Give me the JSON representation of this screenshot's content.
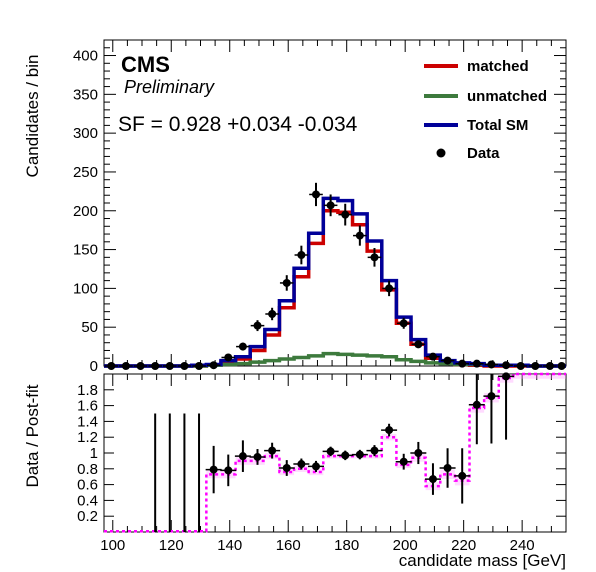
{
  "chart_data": [
    {
      "type": "histogram",
      "panel": "main",
      "header": {
        "experiment": "CMS",
        "status": "Preliminary",
        "scale_factor_text": "SF = 0.928  +0.034 -0.034"
      },
      "ylabel": "Candidates / bin",
      "ylim": [
        0,
        420
      ],
      "yticks": [
        0,
        50,
        100,
        150,
        200,
        250,
        300,
        350,
        400
      ],
      "xlim": [
        97,
        255
      ],
      "bin_width": 5,
      "bin_edges": [
        97,
        102,
        107,
        112,
        117,
        122,
        127,
        132,
        137,
        142,
        147,
        152,
        157,
        162,
        167,
        172,
        177,
        182,
        187,
        192,
        197,
        202,
        207,
        212,
        217,
        222,
        227,
        232,
        237,
        242,
        247,
        252,
        255
      ],
      "legend_position": "top-right",
      "legend": [
        {
          "label": "matched",
          "color": "#cc0000",
          "style": "line"
        },
        {
          "label": "unmatched",
          "color": "#3d7a3d",
          "style": "line"
        },
        {
          "label": "Total SM",
          "color": "#000099",
          "style": "line"
        },
        {
          "label": "Data",
          "color": "#000000",
          "style": "marker"
        }
      ],
      "series": [
        {
          "name": "matched",
          "color": "#cc0000",
          "values": [
            0,
            0,
            0,
            0,
            0,
            0,
            0,
            1,
            5,
            9,
            20,
            40,
            75,
            115,
            158,
            200,
            198,
            182,
            148,
            98,
            55,
            28,
            10,
            4,
            2,
            1,
            0,
            0,
            0,
            0,
            0,
            0
          ]
        },
        {
          "name": "unmatched",
          "color": "#3d7a3d",
          "values": [
            0,
            0,
            0,
            0,
            0,
            0,
            0,
            1,
            2,
            3,
            5,
            7,
            9,
            11,
            13,
            16,
            15,
            14,
            13,
            12,
            8,
            6,
            4,
            3,
            2,
            2,
            1,
            1,
            1,
            0,
            0,
            0
          ]
        },
        {
          "name": "Total SM",
          "color": "#000099",
          "values": [
            0,
            0,
            0,
            0,
            0,
            0,
            1,
            2,
            7,
            12,
            25,
            47,
            84,
            126,
            171,
            216,
            213,
            196,
            161,
            110,
            63,
            34,
            14,
            7,
            4,
            3,
            1,
            1,
            1,
            0,
            0,
            0
          ]
        },
        {
          "name": "Data",
          "color": "#000000",
          "markers": true,
          "values": [
            0,
            0,
            0,
            0,
            0,
            0,
            0,
            1,
            11,
            25,
            52,
            67,
            107,
            143,
            221,
            207,
            195,
            168,
            140,
            100,
            55,
            28,
            12,
            7,
            3,
            3,
            2,
            1,
            0,
            0,
            0,
            0
          ],
          "errors": [
            1,
            1,
            1,
            1,
            1,
            1,
            1,
            1,
            3,
            5,
            7,
            8,
            10,
            12,
            15,
            14,
            14,
            13,
            12,
            10,
            7,
            5,
            3,
            3,
            2,
            2,
            1,
            1,
            1,
            1,
            1,
            1
          ]
        }
      ]
    },
    {
      "type": "ratio",
      "panel": "ratio",
      "ylabel": "Data / Post-fit",
      "xlabel": "candidate mass [GeV]",
      "ylim": [
        0,
        2
      ],
      "yticks": [
        0.2,
        0.4,
        0.6,
        0.8,
        1,
        1.2,
        1.4,
        1.6,
        1.8
      ],
      "xticks": [
        100,
        120,
        140,
        160,
        180,
        200,
        220,
        240
      ],
      "band_color": "#ff00ff",
      "band": {
        "name": "post-fit uncertainty",
        "values": [
          0,
          0,
          0,
          0,
          0,
          0,
          0,
          0.73,
          0.73,
          0.9,
          0.9,
          0.96,
          0.76,
          0.8,
          0.76,
          0.96,
          0.96,
          0.96,
          0.96,
          1.2,
          0.85,
          0.94,
          0.58,
          0.73,
          0.65,
          1.57,
          1.7,
          1.95,
          2,
          2,
          2,
          2
        ],
        "uncertainty": [
          0,
          0,
          0,
          0,
          0,
          0,
          0,
          0.05,
          0.05,
          0.05,
          0.05,
          0.04,
          0.04,
          0.04,
          0.04,
          0.03,
          0.03,
          0.03,
          0.03,
          0.04,
          0.04,
          0.05,
          0.05,
          0.06,
          0.06,
          0.06,
          0.06,
          0.06,
          0.06,
          0.06,
          0.06,
          0.06
        ]
      },
      "points": {
        "x": [
          114.5,
          119.5,
          124.5,
          129.5,
          134.5,
          139.5,
          144.5,
          149.5,
          154.5,
          159.5,
          164.5,
          169.5,
          174.5,
          179.5,
          184.5,
          189.5,
          194.5,
          199.5,
          204.5,
          209.5,
          214.5,
          219.5,
          224.5,
          229.5,
          234.5
        ],
        "y": [
          0,
          0,
          0,
          0,
          0.79,
          0.78,
          0.96,
          0.95,
          1.03,
          0.81,
          0.86,
          0.83,
          1.02,
          0.97,
          0.98,
          1.03,
          1.29,
          0.89,
          1.0,
          0.67,
          0.81,
          0.71,
          1.61,
          1.72,
          1.97
        ],
        "yerr": [
          1.5,
          1.5,
          1.5,
          1.5,
          0.3,
          0.2,
          0.2,
          0.1,
          0.1,
          0.1,
          0.07,
          0.07,
          0.06,
          0.06,
          0.06,
          0.07,
          0.08,
          0.1,
          0.14,
          0.2,
          0.25,
          0.35,
          0.5,
          0.6,
          0.8
        ]
      }
    }
  ]
}
